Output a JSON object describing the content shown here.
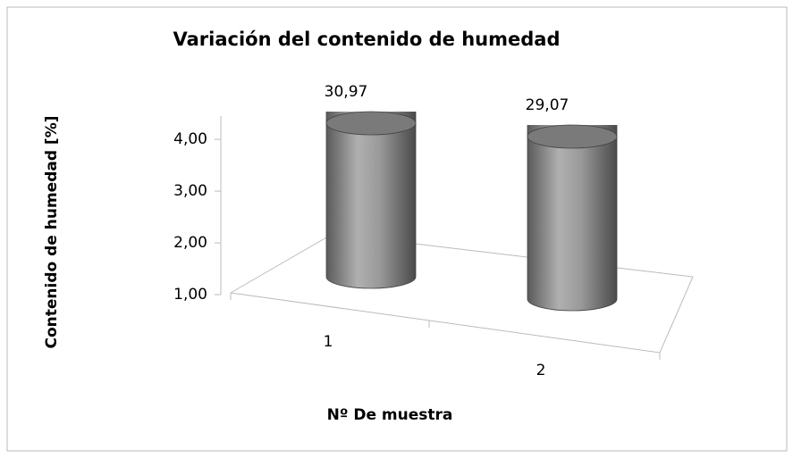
{
  "chart_data": {
    "type": "cylinder",
    "title": "Variación del contenido de humedad",
    "x_label": "Nº  De muestra",
    "y_label": "Contenido de humedad [%]",
    "categories": [
      "1",
      "2"
    ],
    "values": [
      30.97,
      29.07
    ],
    "value_labels": [
      "30,97",
      "29,07"
    ],
    "color": "#8a8a8a",
    "ylim": [
      1,
      4.45
    ],
    "yticks": [
      {
        "value": 1,
        "label": "1,00"
      },
      {
        "value": 2,
        "label": "2,00"
      },
      {
        "value": 3,
        "label": "3,00"
      },
      {
        "value": 4,
        "label": "4,00"
      }
    ]
  }
}
